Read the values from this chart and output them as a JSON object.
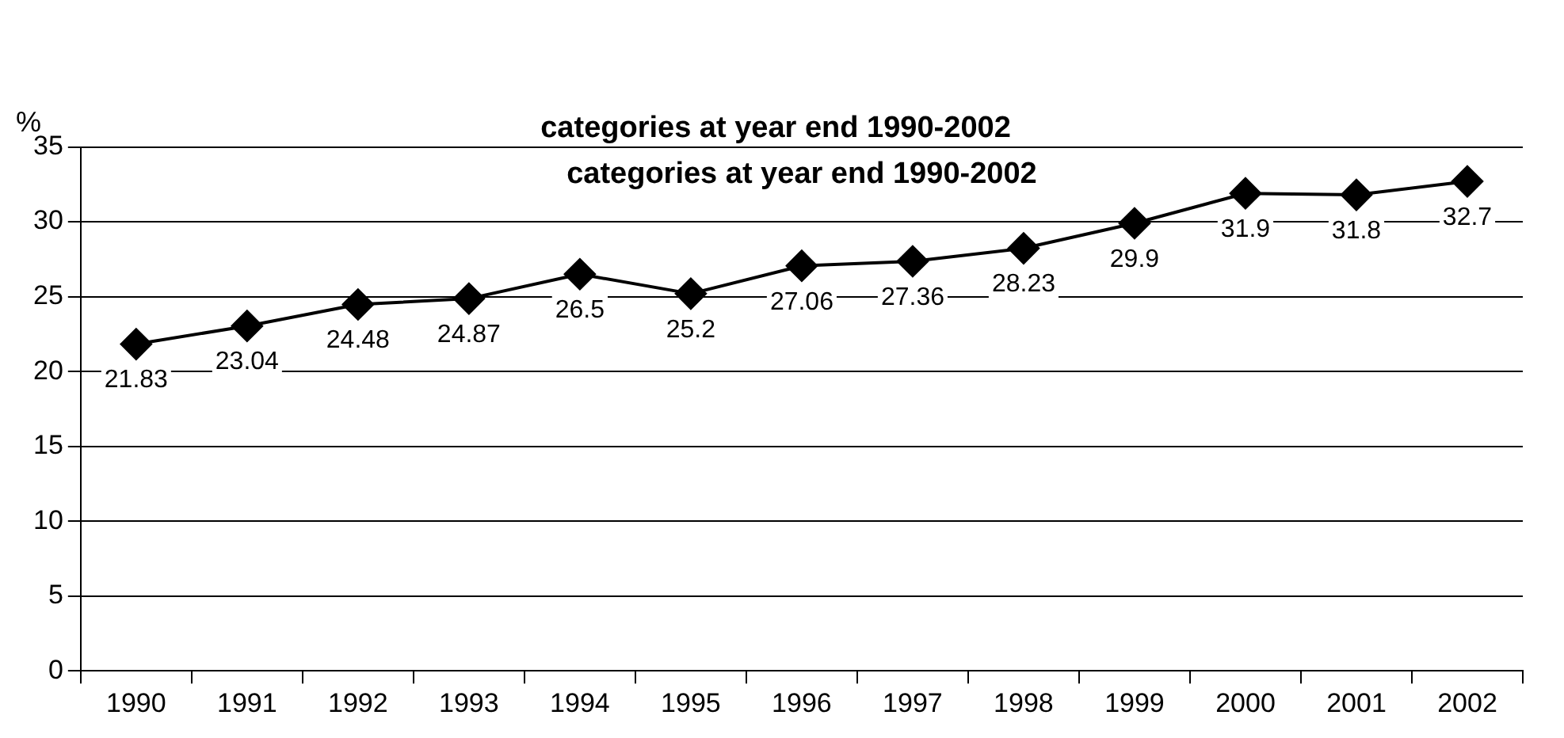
{
  "chart_data": {
    "type": "line",
    "title": "categories at year end 1990-2002",
    "ylabel": "%",
    "annotations": [
      "categories at year end 1990-2002"
    ],
    "categories": [
      "1990",
      "1991",
      "1992",
      "1993",
      "1994",
      "1995",
      "1996",
      "1997",
      "1998",
      "1999",
      "2000",
      "2001",
      "2002"
    ],
    "series": [
      {
        "color": "#000000",
        "values": [
          21.83,
          23.04,
          24.48,
          24.87,
          26.5,
          25.2,
          27.06,
          27.36,
          28.23,
          29.9,
          31.9,
          31.8,
          32.7
        ]
      }
    ],
    "ylim": [
      0,
      35
    ],
    "yticks": [
      0,
      5,
      10,
      15,
      20,
      25,
      30,
      35
    ],
    "grid": "y",
    "legend": false,
    "marker": "diamond",
    "line_style": "solid",
    "data_labels": true
  }
}
